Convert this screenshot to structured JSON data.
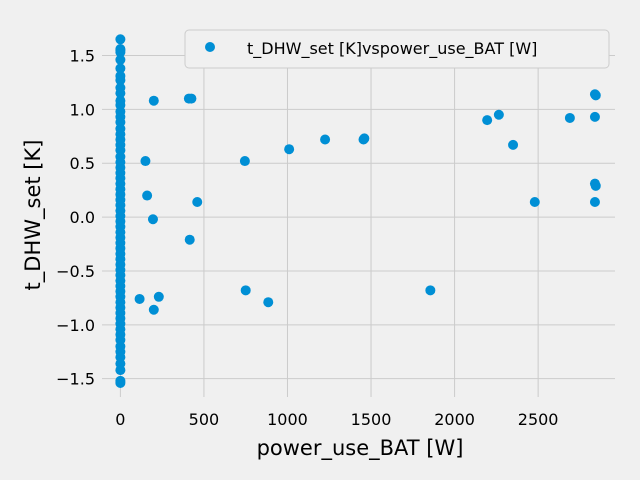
{
  "chart_data": {
    "type": "scatter",
    "title": "",
    "xlabel": "power_use_BAT [W]",
    "ylabel": "t_DHW_set [K]",
    "xlim": [
      -110,
      2960
    ],
    "ylim": [
      -1.67,
      1.69
    ],
    "xticks": [
      0,
      500,
      1000,
      1500,
      2000,
      2500
    ],
    "yticks": [
      -1.5,
      -1.0,
      -0.5,
      0.0,
      0.5,
      1.0,
      1.5
    ],
    "xtick_labels": [
      "0",
      "500",
      "1000",
      "1500",
      "2000",
      "2500"
    ],
    "ytick_labels": [
      "−1.5",
      "−1.0",
      "−0.5",
      "0.0",
      "0.5",
      "1.0",
      "1.5"
    ],
    "grid": true,
    "legend_position": "top-right",
    "series": [
      {
        "name": "t_DHW_set [K]vspower_use_BAT [W]",
        "color": "#008fd5",
        "points": [
          [
            0,
            1.65
          ],
          [
            0,
            1.56
          ],
          [
            0,
            1.55
          ],
          [
            0,
            1.53
          ],
          [
            0,
            1.46
          ],
          [
            0,
            1.38
          ],
          [
            0,
            1.31
          ],
          [
            0,
            1.27
          ],
          [
            0,
            1.2
          ],
          [
            0,
            1.15
          ],
          [
            0,
            1.08
          ],
          [
            0,
            1.04
          ],
          [
            0,
            0.98
          ],
          [
            0,
            0.93
          ],
          [
            0,
            0.88
          ],
          [
            0,
            0.82
          ],
          [
            0,
            0.77
          ],
          [
            0,
            0.72
          ],
          [
            0,
            0.67
          ],
          [
            0,
            0.62
          ],
          [
            0,
            0.56
          ],
          [
            0,
            0.51
          ],
          [
            0,
            0.46
          ],
          [
            0,
            0.41
          ],
          [
            0,
            0.36
          ],
          [
            0,
            0.31
          ],
          [
            0,
            0.26
          ],
          [
            0,
            0.21
          ],
          [
            0,
            0.16
          ],
          [
            0,
            0.11
          ],
          [
            0,
            0.06
          ],
          [
            0,
            0.01
          ],
          [
            0,
            -0.04
          ],
          [
            0,
            -0.09
          ],
          [
            0,
            -0.14
          ],
          [
            0,
            -0.19
          ],
          [
            0,
            -0.24
          ],
          [
            0,
            -0.29
          ],
          [
            0,
            -0.34
          ],
          [
            0,
            -0.39
          ],
          [
            0,
            -0.44
          ],
          [
            0,
            -0.49
          ],
          [
            0,
            -0.54
          ],
          [
            0,
            -0.59
          ],
          [
            0,
            -0.64
          ],
          [
            0,
            -0.69
          ],
          [
            0,
            -0.74
          ],
          [
            0,
            -0.79
          ],
          [
            0,
            -0.84
          ],
          [
            0,
            -0.89
          ],
          [
            0,
            -0.94
          ],
          [
            0,
            -0.99
          ],
          [
            0,
            -1.04
          ],
          [
            0,
            -1.09
          ],
          [
            0,
            -1.14
          ],
          [
            0,
            -1.2
          ],
          [
            0,
            -1.25
          ],
          [
            0,
            -1.3
          ],
          [
            0,
            -1.36
          ],
          [
            0,
            -1.42
          ],
          [
            0,
            -1.52
          ],
          [
            0,
            -1.54
          ],
          [
            200,
            1.08
          ],
          [
            410,
            1.1
          ],
          [
            425,
            1.1
          ],
          [
            150,
            0.52
          ],
          [
            160,
            0.2
          ],
          [
            195,
            -0.02
          ],
          [
            460,
            0.14
          ],
          [
            415,
            -0.21
          ],
          [
            115,
            -0.76
          ],
          [
            230,
            -0.74
          ],
          [
            200,
            -0.86
          ],
          [
            745,
            0.52
          ],
          [
            750,
            -0.68
          ],
          [
            885,
            -0.79
          ],
          [
            1010,
            0.63
          ],
          [
            1225,
            0.72
          ],
          [
            1455,
            0.72
          ],
          [
            1460,
            0.73
          ],
          [
            1855,
            -0.68
          ],
          [
            2195,
            0.9
          ],
          [
            2265,
            0.95
          ],
          [
            2350,
            0.67
          ],
          [
            2480,
            0.14
          ],
          [
            2690,
            0.92
          ],
          [
            2840,
            1.14
          ],
          [
            2845,
            1.13
          ],
          [
            2840,
            0.93
          ],
          [
            2840,
            0.31
          ],
          [
            2845,
            0.29
          ],
          [
            2840,
            0.14
          ]
        ]
      }
    ]
  }
}
